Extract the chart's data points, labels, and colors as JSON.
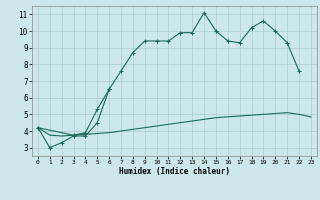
{
  "xlabel": "Humidex (Indice chaleur)",
  "background_color": "#cce8ec",
  "grid_color": "#aacccc",
  "line_color": "#1a6b5a",
  "xlim": [
    -0.5,
    23.5
  ],
  "ylim": [
    2.5,
    11.5
  ],
  "xticks": [
    0,
    1,
    2,
    3,
    4,
    5,
    6,
    7,
    8,
    9,
    10,
    11,
    12,
    13,
    14,
    15,
    16,
    17,
    18,
    19,
    20,
    21,
    22,
    23
  ],
  "yticks": [
    3,
    4,
    5,
    6,
    7,
    8,
    9,
    10,
    11
  ],
  "s1x": [
    0,
    1,
    2,
    3,
    4,
    5,
    6,
    7,
    8,
    9,
    10,
    11,
    12,
    13,
    14,
    15,
    16,
    17,
    18,
    19,
    20,
    21,
    22
  ],
  "s1y": [
    4.2,
    3.0,
    3.3,
    3.7,
    3.7,
    4.5,
    6.5,
    7.6,
    8.7,
    9.4,
    9.4,
    9.4,
    9.9,
    9.9,
    11.1,
    10.0,
    9.4,
    9.3,
    10.2,
    10.6,
    10.0,
    9.3,
    7.6
  ],
  "s2x": [
    0,
    3,
    4,
    5,
    6
  ],
  "s2y": [
    4.2,
    3.75,
    3.9,
    5.3,
    6.5
  ],
  "s3x": [
    0,
    1,
    2,
    3,
    4,
    5,
    6,
    7,
    8,
    9,
    10,
    11,
    12,
    13,
    14,
    15,
    16,
    17,
    18,
    19,
    20,
    21,
    22,
    23
  ],
  "s3y": [
    4.2,
    3.75,
    3.7,
    3.75,
    3.8,
    3.85,
    3.9,
    4.0,
    4.1,
    4.2,
    4.3,
    4.4,
    4.5,
    4.6,
    4.7,
    4.8,
    4.85,
    4.9,
    4.95,
    5.0,
    5.05,
    5.1,
    5.0,
    4.85
  ]
}
